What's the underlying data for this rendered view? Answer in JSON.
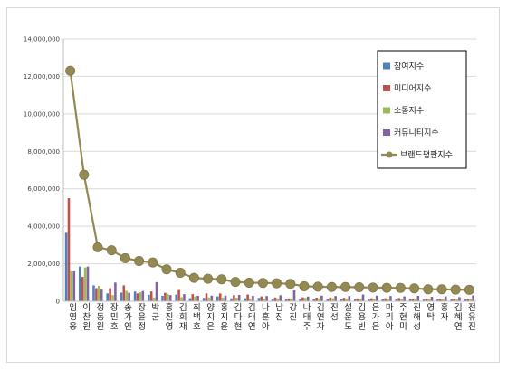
{
  "chart_data": {
    "type": "bar",
    "categories": [
      "임영웅",
      "이찬원",
      "정동원",
      "장민호",
      "송가인",
      "장윤정",
      "박군",
      "홍진영",
      "김희재",
      "최백호",
      "양지은",
      "홍지윤",
      "김다현",
      "김태연",
      "나훈아",
      "남진",
      "강진",
      "나태주",
      "김연자",
      "진성",
      "설운도",
      "김용빈",
      "은가은",
      "마리아",
      "주현미",
      "진해성",
      "영탁",
      "홍자",
      "김혜연",
      "전유진"
    ],
    "ylim": [
      0,
      14000000
    ],
    "yticks": [
      "0",
      "2,000,000",
      "4,000,000",
      "6,000,000",
      "8,000,000",
      "10,000,000",
      "12,000,000",
      "14,000,000"
    ],
    "grid": true,
    "legend_position": "right",
    "series": [
      {
        "name": "참여지수",
        "color": "#4f81bd",
        "kind": "bar",
        "values": [
          3650000,
          1850000,
          850000,
          420000,
          460000,
          520000,
          350000,
          290000,
          360000,
          160000,
          180000,
          260000,
          160000,
          160000,
          180000,
          110000,
          100000,
          110000,
          110000,
          110000,
          110000,
          110000,
          110000,
          100000,
          100000,
          100000,
          90000,
          100000,
          100000,
          100000
        ]
      },
      {
        "name": "미디어지수",
        "color": "#c0504d",
        "kind": "bar",
        "values": [
          5500000,
          1300000,
          700000,
          700000,
          850000,
          420000,
          520000,
          450000,
          600000,
          380000,
          420000,
          420000,
          320000,
          360000,
          260000,
          200000,
          150000,
          210000,
          190000,
          200000,
          180000,
          150000,
          160000,
          160000,
          170000,
          150000,
          140000,
          130000,
          140000,
          120000
        ]
      },
      {
        "name": "소통지수",
        "color": "#9bbb59",
        "kind": "bar",
        "values": [
          1600000,
          1800000,
          820000,
          330000,
          550000,
          480000,
          200000,
          380000,
          220000,
          250000,
          200000,
          200000,
          190000,
          160000,
          150000,
          150000,
          140000,
          180000,
          160000,
          160000,
          150000,
          140000,
          140000,
          140000,
          140000,
          130000,
          140000,
          130000,
          120000,
          130000
        ]
      },
      {
        "name": "커뮤니티지수",
        "color": "#8064a2",
        "kind": "bar",
        "values": [
          1600000,
          1850000,
          620000,
          1000000,
          450000,
          550000,
          1020000,
          330000,
          380000,
          290000,
          300000,
          300000,
          340000,
          290000,
          280000,
          320000,
          580000,
          250000,
          300000,
          280000,
          280000,
          360000,
          300000,
          280000,
          260000,
          290000,
          240000,
          260000,
          220000,
          320000
        ]
      },
      {
        "name": "브랜드평판지수",
        "color": "#938953",
        "kind": "line",
        "values": [
          12300000,
          6750000,
          2880000,
          2720000,
          2300000,
          2150000,
          2070000,
          1700000,
          1520000,
          1250000,
          1200000,
          1170000,
          1030000,
          990000,
          980000,
          960000,
          930000,
          800000,
          780000,
          760000,
          760000,
          750000,
          730000,
          720000,
          710000,
          690000,
          640000,
          640000,
          620000,
          610000
        ]
      }
    ]
  }
}
